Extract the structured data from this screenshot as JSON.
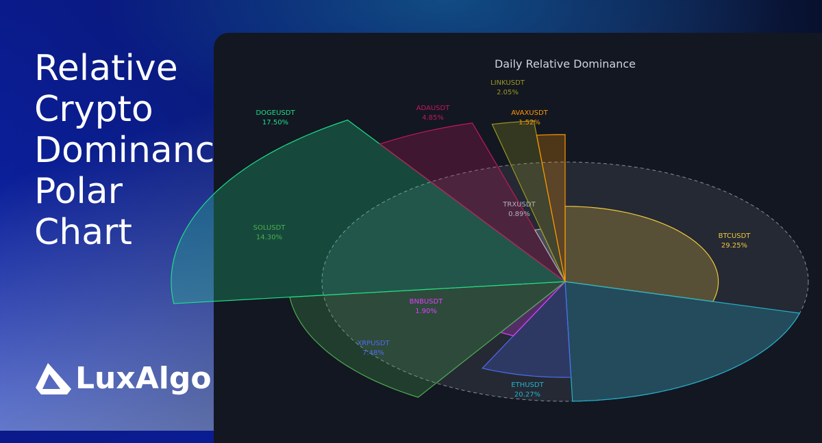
{
  "headline": "Relative Crypto Dominance Polar Chart",
  "brand": "LuxAlgo",
  "chart_data": {
    "type": "polar-area",
    "title": "Daily Relative Dominance",
    "grid": true,
    "series": [
      {
        "name": "BTCUSDT",
        "label": "29.25%",
        "value": 29.25,
        "radius": 0.63,
        "color": "#f0c93c"
      },
      {
        "name": "ETHUSDT",
        "label": "20.27%",
        "value": 20.27,
        "radius": 1.0,
        "color": "#22b5d0"
      },
      {
        "name": "XRPUSDT",
        "label": "7.48%",
        "value": 7.48,
        "radius": 0.8,
        "color": "#4d6cf0"
      },
      {
        "name": "BNBUSDT",
        "label": "1.90%",
        "value": 1.9,
        "radius": 0.5,
        "color": "#e040fb"
      },
      {
        "name": "SOLUSDT",
        "label": "14.30%",
        "value": 14.3,
        "radius": 1.14,
        "color": "#4caf50"
      },
      {
        "name": "DOGEUSDT",
        "label": "17.50%",
        "value": 17.5,
        "radius": 1.62,
        "color": "#1ee08a"
      },
      {
        "name": "ADAUSDT",
        "label": "4.85%",
        "value": 4.85,
        "radius": 1.38,
        "color": "#c2185b"
      },
      {
        "name": "TRXUSDT",
        "label": "0.89%",
        "value": 0.89,
        "radius": 0.45,
        "color": "#b0b3bb"
      },
      {
        "name": "LINKUSDT",
        "label": "2.05%",
        "value": 2.05,
        "radius": 1.35,
        "color": "#9a9a1e"
      },
      {
        "name": "AVAXUSDT",
        "label": "1.52%",
        "value": 1.52,
        "radius": 1.23,
        "color": "#ff9800"
      }
    ]
  }
}
